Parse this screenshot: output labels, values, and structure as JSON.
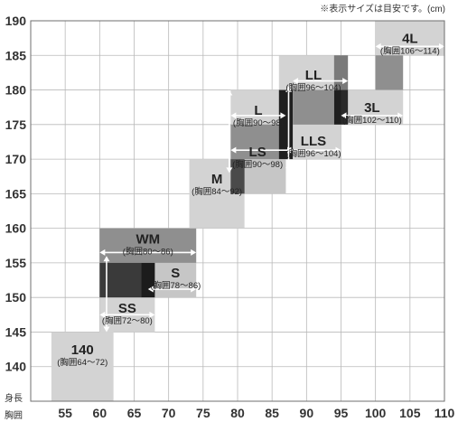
{
  "note": "※表示サイズは目安です。(cm)",
  "chart_data": {
    "type": "heatmap",
    "title": "",
    "xlabel": "胸囲",
    "ylabel": "身長",
    "xlim": [
      50,
      110
    ],
    "ylim": [
      135,
      190
    ],
    "x_ticks": [
      "55",
      "60",
      "65",
      "70",
      "75",
      "80",
      "85",
      "90",
      "95",
      "100",
      "105",
      "110"
    ],
    "y_ticks": [
      "140",
      "145",
      "150",
      "155",
      "160",
      "165",
      "170",
      "175",
      "180",
      "185",
      "190"
    ],
    "grid": true,
    "regions": [
      {
        "size": "140",
        "chest_label": "(胸囲64〜72)",
        "chest_range": [
          53,
          62
        ],
        "height_range": [
          135,
          145
        ],
        "color": "#d3d3d3"
      },
      {
        "size": "SS",
        "chest_label": "(胸囲72〜80)",
        "chest_range": [
          60,
          68
        ],
        "height_range": [
          145,
          155
        ],
        "color": "#d3d3d3"
      },
      {
        "size": "WM",
        "chest_label": "(胸囲80〜86)",
        "chest_range": [
          60,
          74
        ],
        "height_range": [
          155,
          160
        ],
        "color": "#8f8f8f"
      },
      {
        "size": "S",
        "chest_label": "(胸囲78〜86)",
        "chest_range": [
          68,
          74
        ],
        "height_range": [
          150,
          155
        ],
        "color": "#c6c6c6"
      },
      {
        "size": "M",
        "chest_label": "(胸囲84〜92)",
        "chest_range": [
          73,
          81
        ],
        "height_range": [
          160,
          170
        ],
        "color": "#d3d3d3"
      },
      {
        "size": "LS",
        "chest_label": "(胸囲90〜98)",
        "chest_range": [
          79,
          87
        ],
        "height_range": [
          165,
          175
        ],
        "color": "#c6c6c6"
      },
      {
        "size": "L",
        "chest_label": "(胸囲90〜98)",
        "chest_range": [
          79,
          87
        ],
        "height_range": [
          175,
          180
        ],
        "color": "#d3d3d3"
      },
      {
        "size": "LLS",
        "chest_label": "(胸囲96〜104)",
        "chest_range": [
          87,
          95
        ],
        "height_range": [
          170,
          175
        ],
        "color": "#d3d3d3"
      },
      {
        "size": "LL",
        "chest_label": "(胸囲96〜104)",
        "chest_range": [
          86,
          96
        ],
        "height_range": [
          180,
          185
        ],
        "color": "#d3d3d3"
      },
      {
        "size": "3L",
        "chest_label": "(胸囲102〜110)",
        "chest_range": [
          95,
          104
        ],
        "height_range": [
          175,
          180
        ],
        "color": "#d3d3d3"
      },
      {
        "size": "4L",
        "chest_label": "(胸囲106〜114)",
        "chest_range": [
          100,
          110
        ],
        "height_range": [
          185,
          190
        ],
        "color": "#d3d3d3"
      }
    ]
  }
}
